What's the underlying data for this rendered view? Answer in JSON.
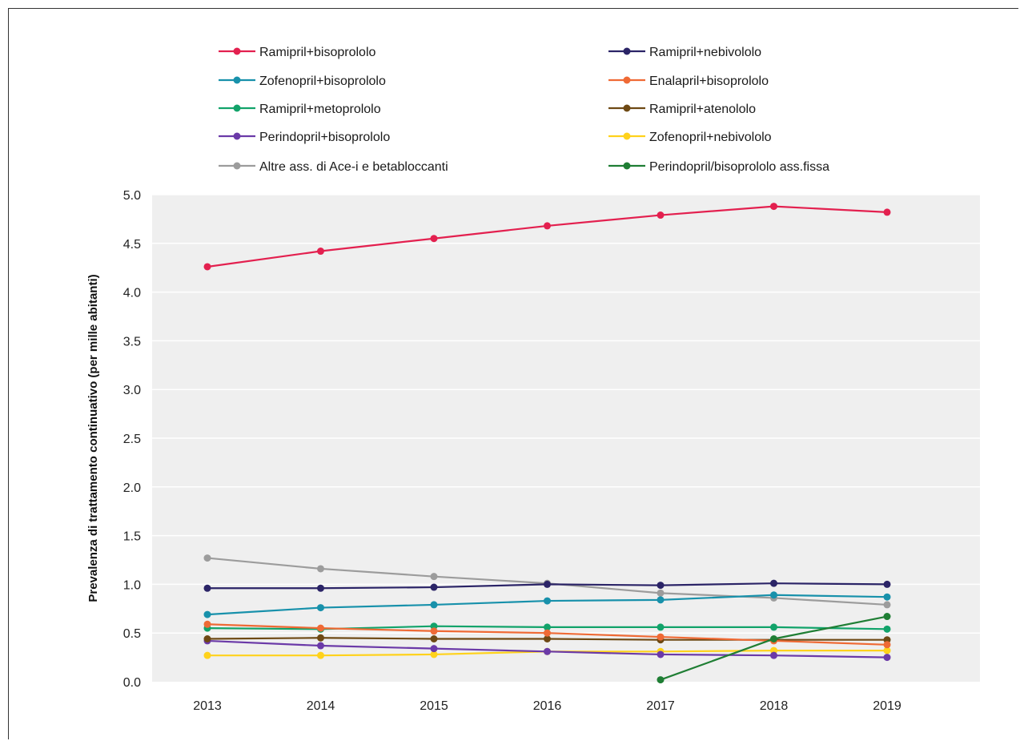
{
  "chart_data": {
    "type": "line",
    "title": "",
    "xlabel": "",
    "ylabel": "Prevalenza di trattamento continuativo (per mille abitanti)",
    "x": [
      "2013",
      "2014",
      "2015",
      "2016",
      "2017",
      "2018",
      "2019"
    ],
    "ylim": [
      0,
      5
    ],
    "yticks": [
      "0.0",
      "0.5",
      "1.0",
      "1.5",
      "2.0",
      "2.5",
      "3.0",
      "3.5",
      "4.0",
      "4.5",
      "5.0"
    ],
    "grid": true,
    "legend_placement": "top",
    "series": [
      {
        "name": "Ramipril+bisoprololo",
        "color": "#e3204f",
        "values": [
          4.26,
          4.42,
          4.55,
          4.68,
          4.79,
          4.88,
          4.82
        ]
      },
      {
        "name": "Ramipril+nebivololo",
        "color": "#2b2467",
        "values": [
          0.96,
          0.96,
          0.97,
          1.0,
          0.99,
          1.01,
          1.0
        ]
      },
      {
        "name": "Zofenopril+bisoprololo",
        "color": "#1891ab",
        "values": [
          0.69,
          0.76,
          0.79,
          0.83,
          0.84,
          0.89,
          0.87
        ]
      },
      {
        "name": "Enalapril+bisoprololo",
        "color": "#ef6a35",
        "values": [
          0.59,
          0.55,
          0.52,
          0.5,
          0.46,
          0.42,
          0.38
        ]
      },
      {
        "name": "Ramipril+metoprololo",
        "color": "#12a36a",
        "values": [
          0.55,
          0.54,
          0.57,
          0.56,
          0.56,
          0.56,
          0.54
        ]
      },
      {
        "name": "Ramipril+atenololo",
        "color": "#6e4914",
        "values": [
          0.44,
          0.45,
          0.44,
          0.44,
          0.43,
          0.43,
          0.43
        ]
      },
      {
        "name": "Perindopril+bisoprololo",
        "color": "#6b3aa8",
        "values": [
          0.42,
          0.37,
          0.34,
          0.31,
          0.28,
          0.27,
          0.25
        ]
      },
      {
        "name": "Zofenopril+nebivololo",
        "color": "#ffd21c",
        "values": [
          0.27,
          0.27,
          0.28,
          0.31,
          0.31,
          0.32,
          0.32
        ]
      },
      {
        "name": "Altre ass. di Ace-i e betabloccanti",
        "color": "#9c9c9c",
        "values": [
          1.27,
          1.16,
          1.08,
          1.01,
          0.91,
          0.86,
          0.79
        ]
      },
      {
        "name": "Perindopril/bisoprololo ass.fissa",
        "color": "#1f7e34",
        "values": [
          null,
          null,
          null,
          null,
          0.02,
          0.44,
          0.67
        ]
      }
    ]
  }
}
